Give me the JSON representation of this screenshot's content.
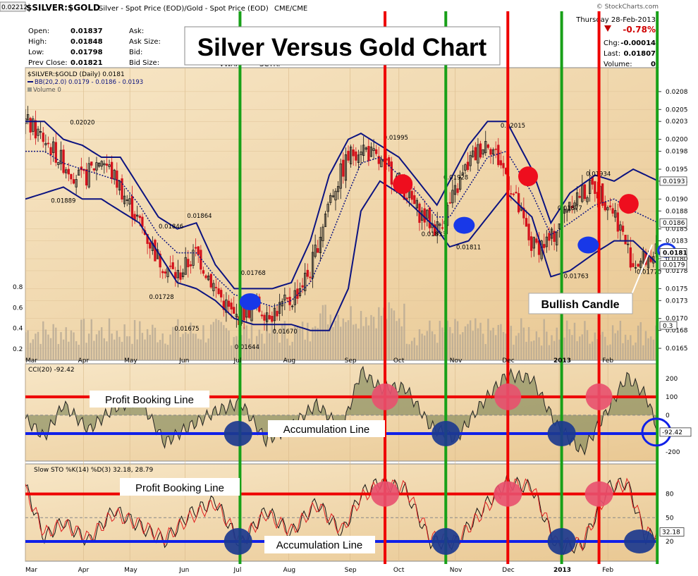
{
  "header": {
    "symbol_badge": "0.02212",
    "symbol": "$SILVER:$GOLD",
    "description": "Silver - Spot Price (EOD)/Gold - Spot Price (EOD)",
    "exchange": "CME/CME",
    "credit": "© StockCharts.com",
    "date": "Thursday  28-Feb-2013",
    "change_pct": "-0.78%",
    "change_label": "Chg:",
    "change": "-0.00014",
    "last_label": "Last:",
    "last": "0.01807",
    "volume_label": "Volume:",
    "volume": "0",
    "fields": [
      {
        "label": "Open:",
        "value": "0.01837",
        "label2": "Ask:",
        "value2": ""
      },
      {
        "label": "High:",
        "value": "0.01848",
        "label2": "Ask Size:",
        "value2": ""
      },
      {
        "label": "Low:",
        "value": "0.01798",
        "label2": "Bid:",
        "value2": ""
      },
      {
        "label": "Prev Close:",
        "value": "0.01821",
        "label2": "Bid Size:",
        "value2": ""
      }
    ],
    "vwap": "VWAP:",
    "sctr": "SCTR:"
  },
  "overlay_title": "Silver Versus Gold Chart",
  "legend": {
    "price": "$SILVER:$GOLD (Daily) 0.0181",
    "bb": "BB(20,2.0) 0.0179 - 0.0186 - 0.0193",
    "volume": "Volume 0"
  },
  "callouts": {
    "bullish": "Bullish Candle",
    "cci_profit": "Profit Booking Line",
    "cci_accum": "Accumulation Line",
    "sto_profit": "Profit Booking Line",
    "sto_accum": "Accumulation Line"
  },
  "colors": {
    "background": "#f3dcb6",
    "up_candle": "#111111",
    "down_candle": "#d4121c",
    "bands": "#0c1380",
    "sell_line": "#ee0000",
    "buy_line": "#18a018",
    "marker_sell": "#ee0e1e",
    "marker_buy": "#1838e8"
  },
  "chart_data": [
    {
      "type": "candlestick",
      "title": "$SILVER:$GOLD (Daily)",
      "x_ticks": [
        "Mar",
        "Apr",
        "May",
        "Jun",
        "Jul",
        "Aug",
        "Sep",
        "Oct",
        "Nov",
        "Dec",
        "2013",
        "Feb"
      ],
      "ylim": [
        0.0163,
        0.0212
      ],
      "y_ticks": [
        0.0165,
        0.0168,
        0.017,
        0.0173,
        0.0175,
        0.0178,
        0.018,
        0.0183,
        0.0185,
        0.0188,
        0.019,
        0.0193,
        0.0195,
        0.0198,
        0.02,
        0.0203,
        0.0205,
        0.0208
      ],
      "y_tick_labels": [
        "0.0165",
        "0.0168",
        "0.0170",
        "0.0173",
        "0.0175",
        "0.0178",
        "0.0180",
        "0.0183",
        "0.0185",
        "0.0188",
        "0.0190",
        "0.0193",
        "0.0195",
        "0.0198",
        "0.0200",
        "0.0203",
        "0.0205",
        "0.0208"
      ],
      "price_path_x": [
        0,
        0.03,
        0.06,
        0.09,
        0.12,
        0.15,
        0.18,
        0.21,
        0.24,
        0.27,
        0.3,
        0.33,
        0.36,
        0.39,
        0.42,
        0.45,
        0.48,
        0.51,
        0.53,
        0.56,
        0.59,
        0.62,
        0.65,
        0.67,
        0.7,
        0.73,
        0.76,
        0.8,
        0.83,
        0.86,
        0.9,
        0.93,
        0.96,
        1.0
      ],
      "price_path_y": [
        0.0203,
        0.02,
        0.0196,
        0.0193,
        0.0197,
        0.0192,
        0.0186,
        0.018,
        0.0177,
        0.0181,
        0.0175,
        0.017,
        0.0172,
        0.0171,
        0.0173,
        0.0178,
        0.019,
        0.0197,
        0.0199,
        0.0196,
        0.0193,
        0.0188,
        0.0185,
        0.0189,
        0.0196,
        0.02,
        0.0194,
        0.0182,
        0.0183,
        0.019,
        0.0192,
        0.0188,
        0.0179,
        0.0181
      ],
      "annotations": [
        {
          "label": "0.02020",
          "x": 0.09,
          "y": 0.0202
        },
        {
          "label": "0.01889",
          "x": 0.06,
          "y": 0.01889
        },
        {
          "label": "0.01846",
          "x": 0.23,
          "y": 0.01846
        },
        {
          "label": "0.01864",
          "x": 0.275,
          "y": 0.01864
        },
        {
          "label": "0.01728",
          "x": 0.215,
          "y": 0.01728
        },
        {
          "label": "0.01675",
          "x": 0.255,
          "y": 0.01675
        },
        {
          "label": "0.01768",
          "x": 0.36,
          "y": 0.01768
        },
        {
          "label": "0.01644",
          "x": 0.35,
          "y": 0.01644
        },
        {
          "label": "0.01670",
          "x": 0.41,
          "y": 0.0167
        },
        {
          "label": "0.01995",
          "x": 0.585,
          "y": 0.01995
        },
        {
          "label": "0.01928",
          "x": 0.68,
          "y": 0.01928
        },
        {
          "label": "0.01833",
          "x": 0.645,
          "y": 0.01833
        },
        {
          "label": "0.01811",
          "x": 0.7,
          "y": 0.01811
        },
        {
          "label": "0.02015",
          "x": 0.77,
          "y": 0.02015
        },
        {
          "label": "0.01877",
          "x": 0.86,
          "y": 0.01877
        },
        {
          "label": "0.01763",
          "x": 0.87,
          "y": 0.01763
        },
        {
          "label": "0.01934",
          "x": 0.905,
          "y": 0.01934
        },
        {
          "label": "0.01770",
          "x": 0.985,
          "y": 0.0177
        }
      ],
      "series": [
        {
          "name": "Upper Band",
          "values": [
            0.0203,
            0.0203,
            0.02,
            0.0199,
            0.0197,
            0.0197,
            0.0192,
            0.0187,
            0.0185,
            0.0186,
            0.0179,
            0.0175,
            0.0175,
            0.0175,
            0.0176,
            0.0183,
            0.0194,
            0.02,
            0.0201,
            0.0199,
            0.0197,
            0.0193,
            0.0189,
            0.0193,
            0.0199,
            0.0203,
            0.0203,
            0.0195,
            0.0186,
            0.0191,
            0.0194,
            0.0193,
            0.0195,
            0.0193
          ]
        },
        {
          "name": "Middle Band",
          "values": [
            0.0198,
            0.0198,
            0.0196,
            0.0195,
            0.0194,
            0.0193,
            0.0189,
            0.0184,
            0.0181,
            0.0181,
            0.0177,
            0.0174,
            0.0173,
            0.0172,
            0.0173,
            0.0176,
            0.0183,
            0.0191,
            0.0196,
            0.0197,
            0.0194,
            0.0191,
            0.0187,
            0.0187,
            0.0192,
            0.0197,
            0.0198,
            0.0191,
            0.0184,
            0.0186,
            0.0189,
            0.019,
            0.0188,
            0.0186
          ]
        },
        {
          "name": "Lower Band",
          "values": [
            0.019,
            0.0191,
            0.0192,
            0.019,
            0.019,
            0.0188,
            0.0186,
            0.0181,
            0.0176,
            0.0175,
            0.0173,
            0.017,
            0.0169,
            0.0169,
            0.0169,
            0.0168,
            0.0168,
            0.0175,
            0.0188,
            0.0193,
            0.0191,
            0.0188,
            0.0185,
            0.0182,
            0.0183,
            0.0187,
            0.0191,
            0.0187,
            0.0177,
            0.0178,
            0.0181,
            0.0183,
            0.0183,
            0.0179
          ]
        }
      ],
      "band_labels": [
        "0.0193",
        "0.0186",
        "0.0181",
        "0.0179"
      ],
      "volume_axis": [
        0.2,
        0.4,
        0.6,
        0.8
      ],
      "volume_end_label": "0.3",
      "markers": [
        {
          "kind": "buy",
          "x": 0.355,
          "y": 0.01728
        },
        {
          "kind": "sell",
          "x": 0.596,
          "y": 0.01925
        },
        {
          "kind": "buy",
          "x": 0.693,
          "y": 0.01856
        },
        {
          "kind": "sell",
          "x": 0.794,
          "y": 0.01938
        },
        {
          "kind": "buy",
          "x": 0.889,
          "y": 0.01823
        },
        {
          "kind": "sell",
          "x": 0.953,
          "y": 0.01892
        },
        {
          "kind": "ring",
          "x": 1.015,
          "y": 0.01814
        }
      ]
    },
    {
      "type": "line",
      "title": "CCI(20) -92.42",
      "current": "-92.42",
      "ylim": [
        -250,
        280
      ],
      "y_ticks": [
        -200,
        -100,
        0,
        100,
        200
      ],
      "profit_line": 100,
      "accumulation_line": -100,
      "x": [
        0,
        0.03,
        0.06,
        0.1,
        0.14,
        0.18,
        0.22,
        0.26,
        0.3,
        0.34,
        0.38,
        0.42,
        0.46,
        0.5,
        0.53,
        0.56,
        0.6,
        0.64,
        0.68,
        0.72,
        0.76,
        0.8,
        0.84,
        0.88,
        0.92,
        0.95,
        0.98,
        1.0
      ],
      "values": [
        -20,
        -120,
        60,
        -80,
        40,
        90,
        -150,
        -60,
        20,
        70,
        -140,
        -60,
        60,
        -80,
        240,
        150,
        150,
        -60,
        -130,
        60,
        220,
        200,
        -60,
        -200,
        30,
        210,
        110,
        -90
      ]
    },
    {
      "type": "line",
      "title": "Slow STO %K(14) %D(3) 32.18, 28.79",
      "k_value": "32.18",
      "d_value": "28.79",
      "ylim": [
        -5,
        118
      ],
      "y_ticks": [
        20,
        50,
        80
      ],
      "y_tick_labels": [
        "20",
        "50",
        "80"
      ],
      "profit_line": 80,
      "accumulation_line": 20,
      "x": [
        0,
        0.03,
        0.06,
        0.1,
        0.14,
        0.18,
        0.22,
        0.26,
        0.3,
        0.34,
        0.38,
        0.42,
        0.46,
        0.5,
        0.53,
        0.56,
        0.6,
        0.64,
        0.68,
        0.72,
        0.76,
        0.8,
        0.84,
        0.88,
        0.92,
        0.95,
        0.98,
        1.0
      ],
      "series": [
        {
          "name": "%K",
          "values": [
            90,
            25,
            45,
            20,
            60,
            40,
            20,
            55,
            72,
            15,
            60,
            30,
            70,
            30,
            80,
            95,
            85,
            20,
            18,
            60,
            95,
            88,
            12,
            15,
            88,
            95,
            25,
            32
          ]
        },
        {
          "name": "%D",
          "values": [
            85,
            30,
            42,
            24,
            55,
            42,
            24,
            50,
            68,
            20,
            55,
            33,
            66,
            34,
            75,
            92,
            88,
            25,
            20,
            55,
            92,
            90,
            16,
            18,
            84,
            93,
            30,
            29
          ]
        }
      ]
    }
  ],
  "x_axis_labels": [
    "Mar",
    "Apr",
    "May",
    "Jun",
    "Jul",
    "Aug",
    "Sep",
    "Oct",
    "Nov",
    "Dec",
    "2013",
    "Feb"
  ]
}
